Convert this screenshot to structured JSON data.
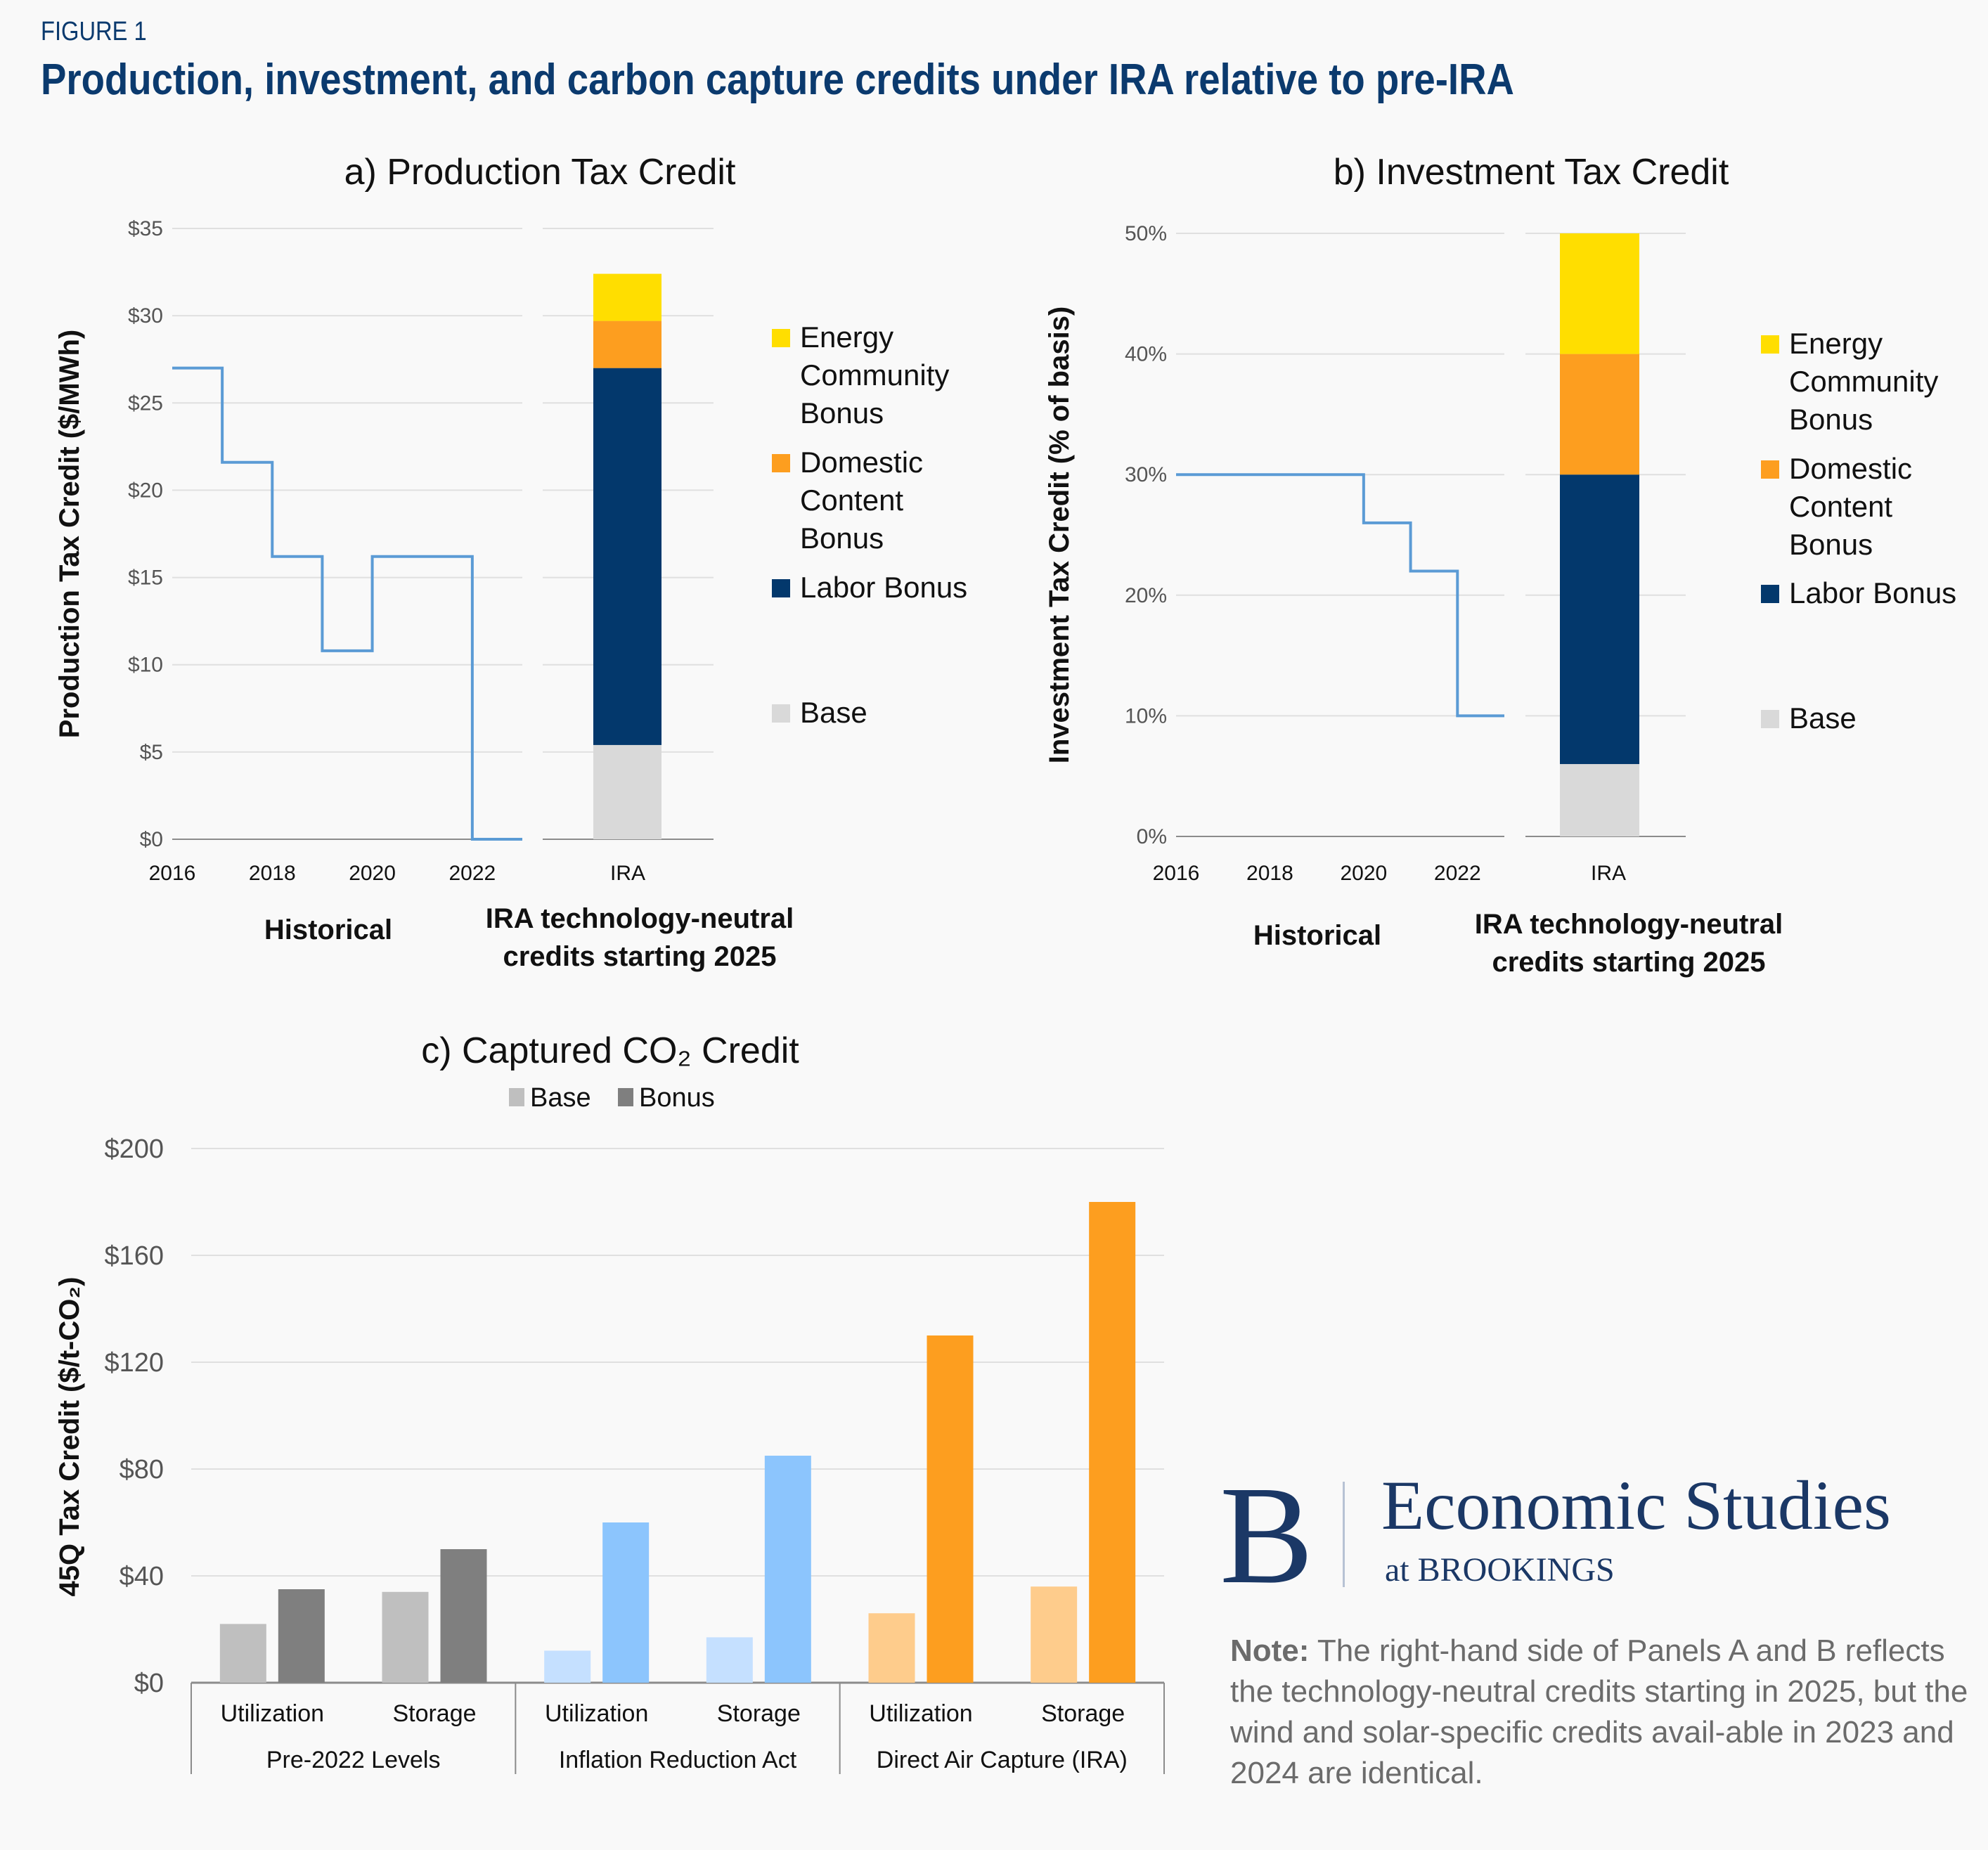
{
  "figure": {
    "label": "FIGURE 1",
    "title": "Production, investment, and carbon capture credits under IRA relative to pre-IRA"
  },
  "colors": {
    "historical_line": "#5b9bd5",
    "base": "#d9d9d9",
    "labor_bonus": "#03386c",
    "domestic_content_bonus": "#fd9e1f",
    "energy_community_bonus": "#ffde00",
    "grid": "#e0e0e0",
    "axis": "#8c8c8c",
    "brand": "#1b3866"
  },
  "chart_data": [
    {
      "id": "ptc",
      "type": "line+stacked-bar",
      "title": "a)  Production Tax Credit",
      "ylabel": "Production Tax Credit ($/MWh)",
      "ylim": [
        0,
        35
      ],
      "yticks": [
        0,
        5,
        10,
        15,
        20,
        25,
        30,
        35
      ],
      "ytick_labels": [
        "$0",
        "$5",
        "$10",
        "$15",
        "$20",
        "$25",
        "$30",
        "$35"
      ],
      "grid": true,
      "historical": {
        "group_label": "Historical",
        "xtick_labels": [
          "2016",
          "2018",
          "2020",
          "2022"
        ],
        "x_range": [
          2016,
          2023
        ],
        "step_x": [
          2016,
          2017,
          2018,
          2019,
          2020,
          2021,
          2022,
          2023
        ],
        "step_y": [
          27,
          21.6,
          16.2,
          10.8,
          16.2,
          16.2,
          0,
          0
        ]
      },
      "ira": {
        "group_label": "IRA technology-neutral credits starting 2025",
        "group_label_lines": [
          "IRA technology-neutral",
          "credits starting 2025"
        ],
        "category": "IRA",
        "stack": [
          {
            "name": "Base",
            "value": 5.4
          },
          {
            "name": "Labor Bonus",
            "value": 21.6
          },
          {
            "name": "Domestic Content Bonus",
            "value": 2.7
          },
          {
            "name": "Energy Community Bonus",
            "value": 2.7
          }
        ]
      },
      "legend": [
        {
          "key": "energy_community_bonus",
          "lines": [
            "Energy",
            "Community",
            "Bonus"
          ]
        },
        {
          "key": "domestic_content_bonus",
          "lines": [
            "Domestic",
            "Content",
            "Bonus"
          ]
        },
        {
          "key": "labor_bonus",
          "lines": [
            "Labor Bonus"
          ]
        },
        {
          "key": "base",
          "lines": [
            "Base"
          ]
        }
      ],
      "legend_position": "right"
    },
    {
      "id": "itc",
      "type": "line+stacked-bar",
      "title": "b) Investment Tax Credit",
      "ylabel": "Investment Tax Credit (% of basis)",
      "ylim": [
        0,
        50
      ],
      "yticks": [
        0,
        10,
        20,
        30,
        40,
        50
      ],
      "ytick_labels": [
        "0%",
        "10%",
        "20%",
        "30%",
        "40%",
        "50%"
      ],
      "grid": true,
      "historical": {
        "group_label": "Historical",
        "xtick_labels": [
          "2016",
          "2018",
          "2020",
          "2022"
        ],
        "x_range": [
          2016,
          2023
        ],
        "step_x": [
          2016,
          2017,
          2018,
          2019,
          2020,
          2021,
          2022,
          2023
        ],
        "step_y": [
          30,
          30,
          30,
          30,
          26,
          22,
          10,
          10
        ]
      },
      "ira": {
        "group_label": "IRA technology-neutral credits starting 2025",
        "group_label_lines": [
          "IRA technology-neutral",
          "credits starting 2025"
        ],
        "category": "IRA",
        "stack": [
          {
            "name": "Base",
            "value": 6
          },
          {
            "name": "Labor Bonus",
            "value": 24
          },
          {
            "name": "Domestic Content Bonus",
            "value": 10
          },
          {
            "name": "Energy Community Bonus",
            "value": 10
          }
        ]
      },
      "legend": [
        {
          "key": "energy_community_bonus",
          "lines": [
            "Energy",
            "Community",
            "Bonus"
          ]
        },
        {
          "key": "domestic_content_bonus",
          "lines": [
            "Domestic",
            "Content",
            "Bonus"
          ]
        },
        {
          "key": "labor_bonus",
          "lines": [
            "Labor Bonus"
          ]
        },
        {
          "key": "base",
          "lines": [
            "Base"
          ]
        }
      ],
      "legend_position": "right"
    },
    {
      "id": "co2",
      "type": "bar",
      "title": "c) Captured CO₂ Credit",
      "ylabel": "45Q Tax Credit ($/t-CO₂)",
      "ylim": [
        0,
        200
      ],
      "yticks": [
        0,
        40,
        80,
        120,
        160,
        200
      ],
      "ytick_labels": [
        "$0",
        "$40",
        "$80",
        "$120",
        "$160",
        "$200"
      ],
      "grid": true,
      "legend": [
        {
          "name": "Base",
          "color": "#bfbfbf"
        },
        {
          "name": "Bonus",
          "color": "#7f7f7f"
        }
      ],
      "legend_position": "top",
      "groups": [
        {
          "name": "Pre-2022 Levels",
          "base_color": "#bfbfbf",
          "bonus_color": "#7f7f7f",
          "categories": [
            {
              "name": "Utilization",
              "base": 22,
              "bonus": 35
            },
            {
              "name": "Storage",
              "base": 34,
              "bonus": 50
            }
          ]
        },
        {
          "name": "Inflation Reduction Act",
          "base_color": "#c5e0ff",
          "bonus_color": "#8cc5fd",
          "categories": [
            {
              "name": "Utilization",
              "base": 12,
              "bonus": 60
            },
            {
              "name": "Storage",
              "base": 17,
              "bonus": 85
            }
          ]
        },
        {
          "name": "Direct Air Capture (IRA)",
          "base_color": "#fecc8c",
          "bonus_color": "#fd9e1f",
          "categories": [
            {
              "name": "Utilization",
              "base": 26,
              "bonus": 130
            },
            {
              "name": "Storage",
              "base": 36,
              "bonus": 180
            }
          ]
        }
      ]
    }
  ],
  "logo": {
    "mark": "B",
    "title": "Economic Studies",
    "subtitle": "at BROOKINGS"
  },
  "note": {
    "label": "Note:",
    "text": " The right-hand side of Panels A and B reflects the technology-neutral credits starting in 2025, but the wind and solar-specific credits avail-able in 2023 and 2024 are identical."
  }
}
